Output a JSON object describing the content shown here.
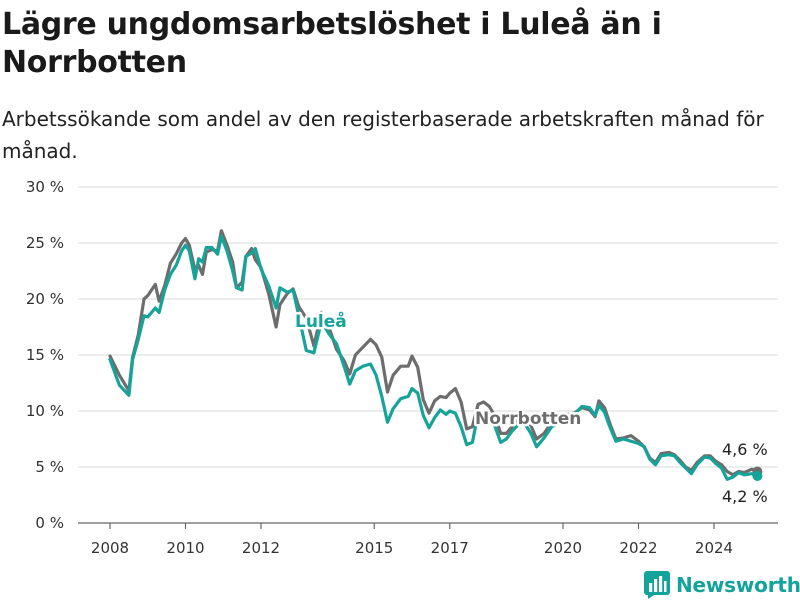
{
  "chart_data": {
    "type": "line",
    "title": "Lägre ungdomsarbetslöshet i Luleå än i Norrbotten",
    "subtitle": "Arbetssökande som andel av den registerbaserade arbetskraften månad för månad.",
    "y_ticks": [
      "0 %",
      "5 %",
      "10 %",
      "15 %",
      "20 %",
      "25 %",
      "30 %"
    ],
    "y_tick_values": [
      0,
      5,
      10,
      15,
      20,
      25,
      30
    ],
    "x_ticks": [
      "2008",
      "2010",
      "2012",
      "2015",
      "2017",
      "2020",
      "2022",
      "2024"
    ],
    "x_tick_values": [
      2008,
      2010,
      2012,
      2015,
      2017,
      2020,
      2022,
      2024
    ],
    "ylim": [
      0,
      30
    ],
    "xlim": [
      2007.25,
      2025.6
    ],
    "grid": true,
    "series": [
      {
        "name": "Norrbotten",
        "color": "#6d6d6d",
        "end_label": "4,6 %",
        "points": [
          [
            2008.0,
            14.9
          ],
          [
            2008.25,
            13.2
          ],
          [
            2008.5,
            11.8
          ],
          [
            2008.6,
            14.8
          ],
          [
            2008.75,
            16.8
          ],
          [
            2008.9,
            20.0
          ],
          [
            2009.0,
            20.3
          ],
          [
            2009.2,
            21.3
          ],
          [
            2009.3,
            19.8
          ],
          [
            2009.45,
            21.2
          ],
          [
            2009.6,
            23.2
          ],
          [
            2009.75,
            24.0
          ],
          [
            2009.9,
            25.0
          ],
          [
            2010.0,
            25.4
          ],
          [
            2010.1,
            24.8
          ],
          [
            2010.25,
            22.6
          ],
          [
            2010.35,
            23.0
          ],
          [
            2010.45,
            22.2
          ],
          [
            2010.55,
            24.2
          ],
          [
            2010.7,
            24.4
          ],
          [
            2010.85,
            24.3
          ],
          [
            2010.95,
            26.1
          ],
          [
            2011.1,
            24.8
          ],
          [
            2011.25,
            23.3
          ],
          [
            2011.35,
            21.0
          ],
          [
            2011.5,
            21.5
          ],
          [
            2011.6,
            23.8
          ],
          [
            2011.75,
            24.5
          ],
          [
            2011.85,
            23.5
          ],
          [
            2012.0,
            22.8
          ],
          [
            2012.2,
            20.5
          ],
          [
            2012.4,
            17.5
          ],
          [
            2012.5,
            19.5
          ],
          [
            2012.7,
            20.5
          ],
          [
            2012.85,
            20.9
          ],
          [
            2013.0,
            19.3
          ],
          [
            2013.2,
            18.3
          ],
          [
            2013.4,
            15.8
          ],
          [
            2013.6,
            18.8
          ],
          [
            2013.8,
            17.5
          ],
          [
            2014.0,
            15.5
          ],
          [
            2014.2,
            14.5
          ],
          [
            2014.35,
            13.3
          ],
          [
            2014.5,
            15.0
          ],
          [
            2014.7,
            15.7
          ],
          [
            2014.9,
            16.4
          ],
          [
            2015.05,
            15.9
          ],
          [
            2015.2,
            14.8
          ],
          [
            2015.35,
            11.7
          ],
          [
            2015.5,
            13.2
          ],
          [
            2015.7,
            14.0
          ],
          [
            2015.9,
            14.0
          ],
          [
            2016.0,
            14.9
          ],
          [
            2016.15,
            13.9
          ],
          [
            2016.3,
            11.0
          ],
          [
            2016.45,
            9.8
          ],
          [
            2016.6,
            10.9
          ],
          [
            2016.75,
            11.3
          ],
          [
            2016.9,
            11.2
          ],
          [
            2017.0,
            11.6
          ],
          [
            2017.15,
            12.0
          ],
          [
            2017.3,
            10.8
          ],
          [
            2017.45,
            8.4
          ],
          [
            2017.6,
            8.6
          ],
          [
            2017.75,
            10.6
          ],
          [
            2017.9,
            10.8
          ],
          [
            2018.05,
            10.4
          ],
          [
            2018.2,
            9.5
          ],
          [
            2018.35,
            8.0
          ],
          [
            2018.5,
            8.0
          ],
          [
            2018.65,
            8.6
          ],
          [
            2018.85,
            9.6
          ],
          [
            2019.0,
            9.5
          ],
          [
            2019.15,
            8.7
          ],
          [
            2019.3,
            7.5
          ],
          [
            2019.5,
            8.0
          ],
          [
            2019.7,
            9.0
          ],
          [
            2019.9,
            9.3
          ],
          [
            2020.1,
            9.7
          ],
          [
            2020.3,
            9.8
          ],
          [
            2020.5,
            10.3
          ],
          [
            2020.7,
            10.1
          ],
          [
            2020.85,
            9.5
          ],
          [
            2020.95,
            10.9
          ],
          [
            2021.1,
            10.3
          ],
          [
            2021.25,
            8.8
          ],
          [
            2021.4,
            7.5
          ],
          [
            2021.6,
            7.6
          ],
          [
            2021.8,
            7.8
          ],
          [
            2022.0,
            7.3
          ],
          [
            2022.15,
            6.8
          ],
          [
            2022.3,
            5.8
          ],
          [
            2022.45,
            5.4
          ],
          [
            2022.6,
            6.2
          ],
          [
            2022.8,
            6.3
          ],
          [
            2022.95,
            6.1
          ],
          [
            2023.1,
            5.6
          ],
          [
            2023.25,
            5.0
          ],
          [
            2023.4,
            4.7
          ],
          [
            2023.55,
            5.4
          ],
          [
            2023.75,
            6.0
          ],
          [
            2023.9,
            6.0
          ],
          [
            2024.05,
            5.5
          ],
          [
            2024.2,
            5.2
          ],
          [
            2024.35,
            4.6
          ],
          [
            2024.5,
            4.3
          ],
          [
            2024.65,
            4.6
          ],
          [
            2024.8,
            4.5
          ],
          [
            2025.0,
            4.8
          ],
          [
            2025.15,
            4.6
          ]
        ]
      },
      {
        "name": "Luleå",
        "color": "#16a39a",
        "end_label": "4,2 %",
        "points": [
          [
            2008.0,
            14.6
          ],
          [
            2008.25,
            12.3
          ],
          [
            2008.5,
            11.4
          ],
          [
            2008.6,
            14.6
          ],
          [
            2008.75,
            16.4
          ],
          [
            2008.9,
            18.5
          ],
          [
            2009.0,
            18.4
          ],
          [
            2009.2,
            19.2
          ],
          [
            2009.3,
            18.8
          ],
          [
            2009.45,
            20.8
          ],
          [
            2009.6,
            22.2
          ],
          [
            2009.75,
            23.0
          ],
          [
            2009.9,
            24.3
          ],
          [
            2010.0,
            24.8
          ],
          [
            2010.1,
            24.3
          ],
          [
            2010.25,
            21.8
          ],
          [
            2010.35,
            23.6
          ],
          [
            2010.45,
            23.3
          ],
          [
            2010.55,
            24.6
          ],
          [
            2010.7,
            24.6
          ],
          [
            2010.85,
            24.0
          ],
          [
            2010.95,
            25.6
          ],
          [
            2011.1,
            24.3
          ],
          [
            2011.25,
            22.5
          ],
          [
            2011.35,
            21.0
          ],
          [
            2011.5,
            20.8
          ],
          [
            2011.6,
            23.8
          ],
          [
            2011.75,
            24.1
          ],
          [
            2011.85,
            24.5
          ],
          [
            2012.0,
            22.7
          ],
          [
            2012.2,
            21.2
          ],
          [
            2012.4,
            19.2
          ],
          [
            2012.5,
            21.0
          ],
          [
            2012.7,
            20.6
          ],
          [
            2012.85,
            20.8
          ],
          [
            2013.0,
            18.5
          ],
          [
            2013.2,
            15.4
          ],
          [
            2013.4,
            15.2
          ],
          [
            2013.6,
            18.0
          ],
          [
            2013.8,
            16.9
          ],
          [
            2014.0,
            16.0
          ],
          [
            2014.2,
            14.0
          ],
          [
            2014.35,
            12.4
          ],
          [
            2014.5,
            13.6
          ],
          [
            2014.7,
            14.0
          ],
          [
            2014.9,
            14.2
          ],
          [
            2015.05,
            13.2
          ],
          [
            2015.2,
            11.3
          ],
          [
            2015.35,
            9.0
          ],
          [
            2015.5,
            10.2
          ],
          [
            2015.7,
            11.1
          ],
          [
            2015.9,
            11.3
          ],
          [
            2016.0,
            12.0
          ],
          [
            2016.15,
            11.6
          ],
          [
            2016.3,
            9.6
          ],
          [
            2016.45,
            8.5
          ],
          [
            2016.6,
            9.4
          ],
          [
            2016.75,
            10.1
          ],
          [
            2016.9,
            9.7
          ],
          [
            2017.0,
            10.0
          ],
          [
            2017.15,
            9.8
          ],
          [
            2017.3,
            8.6
          ],
          [
            2017.45,
            7.0
          ],
          [
            2017.6,
            7.2
          ],
          [
            2017.75,
            9.8
          ],
          [
            2017.9,
            9.9
          ],
          [
            2018.05,
            9.5
          ],
          [
            2018.2,
            8.6
          ],
          [
            2018.35,
            7.2
          ],
          [
            2018.5,
            7.5
          ],
          [
            2018.65,
            8.2
          ],
          [
            2018.85,
            8.9
          ],
          [
            2019.0,
            8.8
          ],
          [
            2019.15,
            8.0
          ],
          [
            2019.3,
            6.8
          ],
          [
            2019.5,
            7.6
          ],
          [
            2019.7,
            8.6
          ],
          [
            2019.9,
            8.9
          ],
          [
            2020.1,
            9.4
          ],
          [
            2020.3,
            9.7
          ],
          [
            2020.5,
            10.4
          ],
          [
            2020.7,
            10.3
          ],
          [
            2020.85,
            9.6
          ],
          [
            2020.95,
            10.5
          ],
          [
            2021.1,
            9.9
          ],
          [
            2021.25,
            8.5
          ],
          [
            2021.4,
            7.3
          ],
          [
            2021.6,
            7.5
          ],
          [
            2021.8,
            7.3
          ],
          [
            2022.0,
            7.1
          ],
          [
            2022.15,
            6.8
          ],
          [
            2022.3,
            5.7
          ],
          [
            2022.45,
            5.2
          ],
          [
            2022.6,
            6.0
          ],
          [
            2022.8,
            6.1
          ],
          [
            2022.95,
            6.0
          ],
          [
            2023.1,
            5.4
          ],
          [
            2023.25,
            4.9
          ],
          [
            2023.4,
            4.4
          ],
          [
            2023.55,
            5.2
          ],
          [
            2023.75,
            5.9
          ],
          [
            2023.9,
            5.8
          ],
          [
            2024.05,
            5.3
          ],
          [
            2024.2,
            4.9
          ],
          [
            2024.35,
            3.9
          ],
          [
            2024.5,
            4.1
          ],
          [
            2024.65,
            4.5
          ],
          [
            2024.8,
            4.3
          ],
          [
            2025.0,
            4.4
          ],
          [
            2025.15,
            4.2
          ]
        ]
      }
    ]
  },
  "brand": {
    "name": "Newsworthy",
    "color": "#13a39a"
  }
}
